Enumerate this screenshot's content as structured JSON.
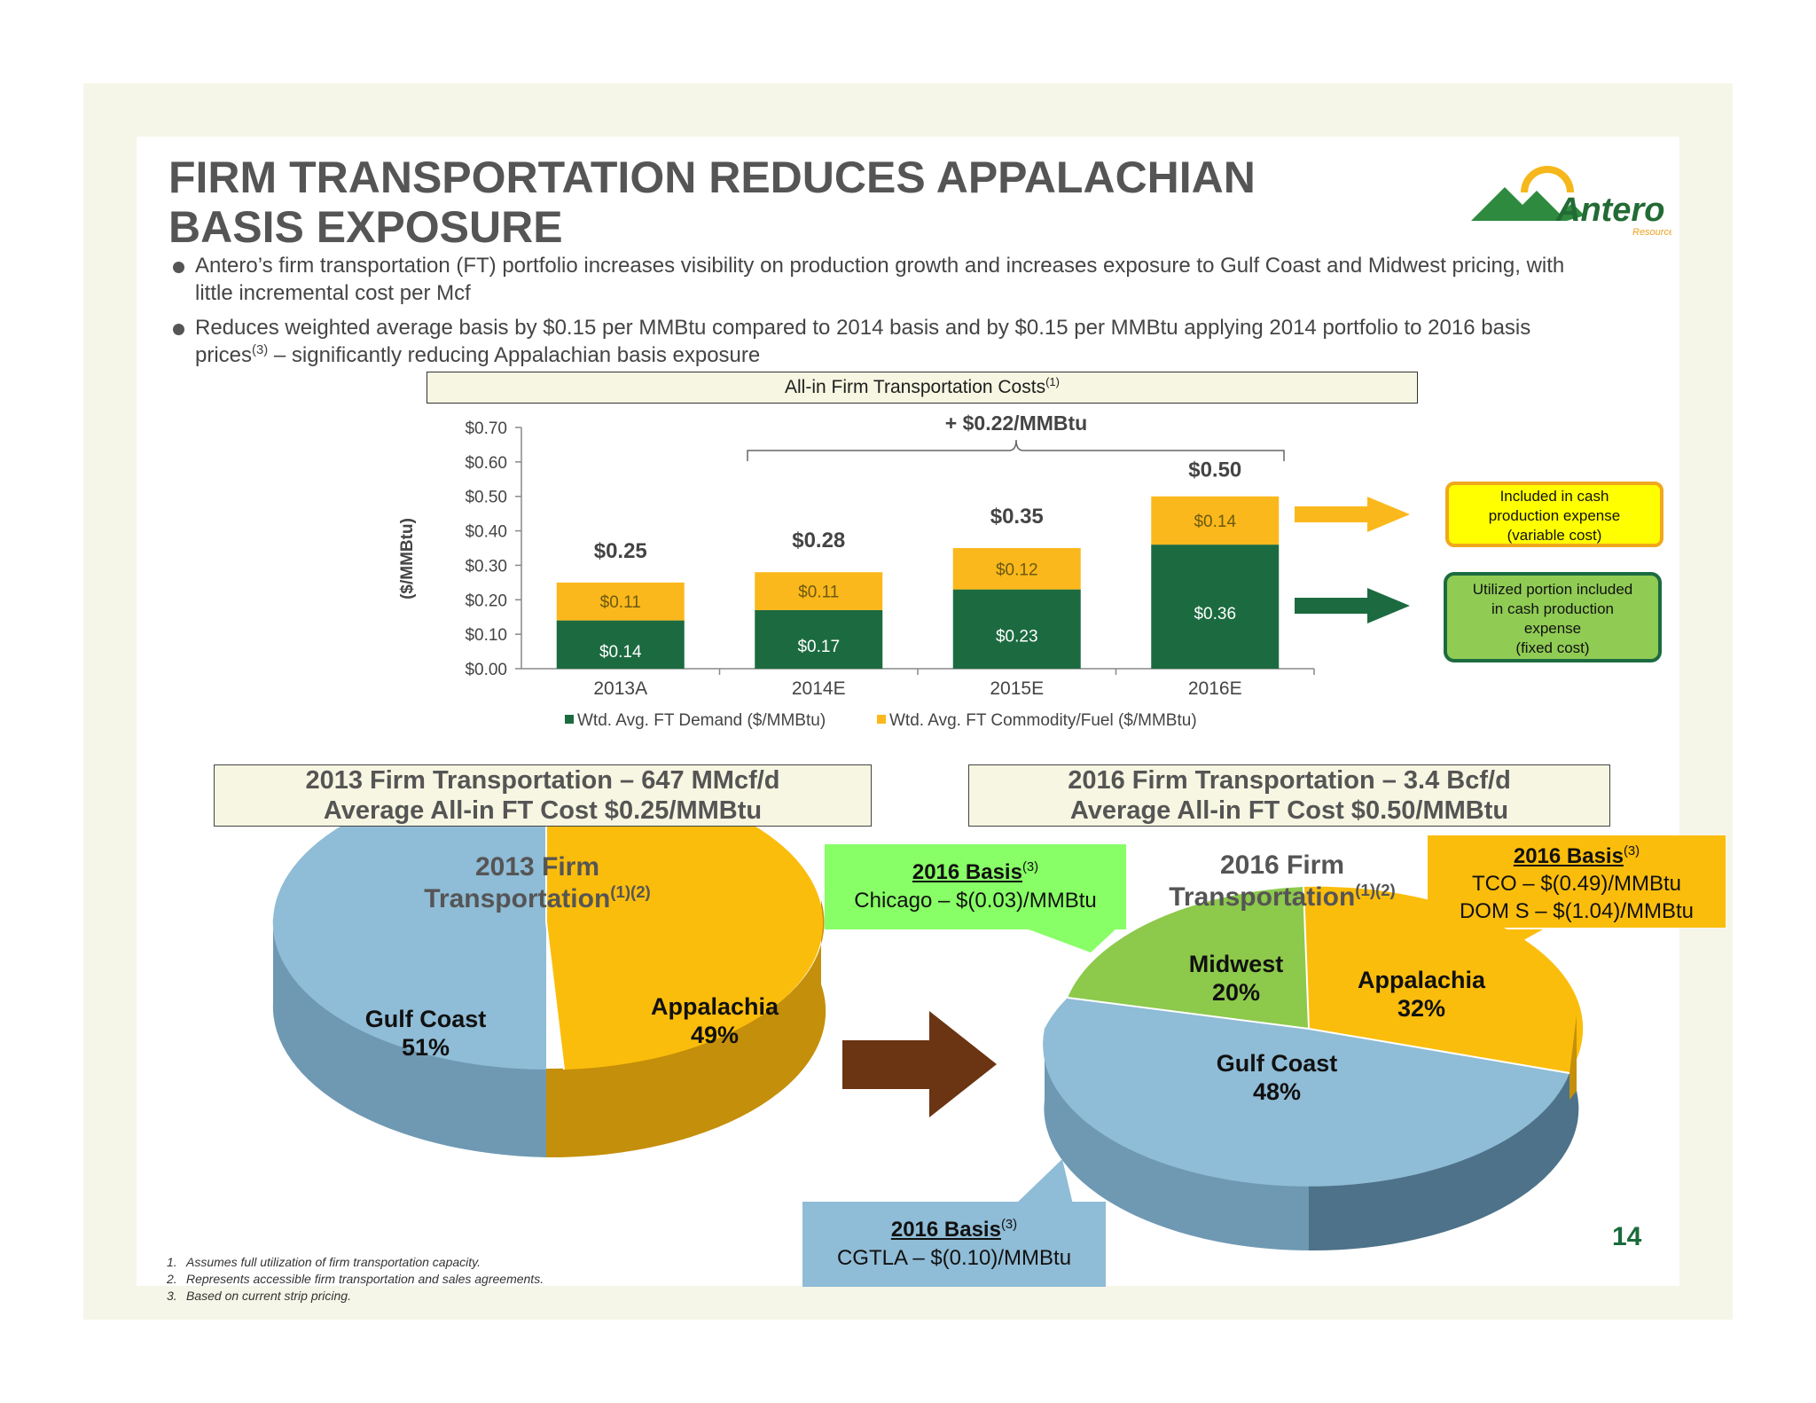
{
  "title": {
    "line1": "FIRM TRANSPORTATION REDUCES APPALACHIAN",
    "line2": "BASIS EXPOSURE"
  },
  "logo": {
    "text": "Antero",
    "subtext": "Resources",
    "icon": "mountain-sun-logo"
  },
  "bullets": [
    {
      "text": "Antero’s firm transportation (FT) portfolio increases visibility on production growth and  increases exposure to Gulf Coast and Midwest pricing, with little incremental cost per Mcf"
    },
    {
      "text_before": "Reduces weighted average basis by $0.15 per MMBtu compared to 2014 basis and by $0.15 per MMBtu applying 2014 portfolio to 2016 basis prices",
      "sup": "(3)",
      "text_after": " – significantly reducing Appalachian basis exposure"
    }
  ],
  "cost_header": {
    "text": "All-in Firm Transportation Costs",
    "sup": "(1)"
  },
  "chart_data": [
    {
      "type": "bar",
      "stacked": true,
      "title": "All-in Firm Transportation Costs(1)",
      "categories": [
        "2013A",
        "2014E",
        "2015E",
        "2016E"
      ],
      "series": [
        {
          "name": "Wtd. Avg. FT Demand ($/MMBtu)",
          "values": [
            0.14,
            0.17,
            0.23,
            0.36
          ],
          "color": "#1c6b40",
          "labels": [
            "$0.14",
            "$0.17",
            "$0.23",
            "$0.36"
          ]
        },
        {
          "name": "Wtd. Avg. FT Commodity/Fuel ($/MMBtu)",
          "values": [
            0.11,
            0.11,
            0.12,
            0.14
          ],
          "color": "#fbb81c",
          "labels": [
            "$0.11",
            "$0.11",
            "$0.12",
            "$0.14"
          ]
        }
      ],
      "totals": [
        "$0.25",
        "$0.28",
        "$0.35",
        "$0.50"
      ],
      "ylabel": "($/MMBtu)",
      "xlabel": "",
      "ylim": [
        0,
        0.7
      ],
      "yticks": [
        "$0.00",
        "$0.10",
        "$0.20",
        "$0.30",
        "$0.40",
        "$0.50",
        "$0.60",
        "$0.70"
      ],
      "grid": false,
      "legend_position": "bottom",
      "annotations": {
        "increase": "+ $0.22/MMBtu",
        "variable_cost": [
          "Included in cash",
          "production expense",
          "(variable cost)"
        ],
        "fixed_cost": [
          "Utilized portion included",
          "in cash production",
          "expense",
          "(fixed cost)"
        ]
      }
    },
    {
      "type": "pie",
      "title": "2013 Firm Transportation(1)(2)",
      "categories": [
        "Gulf Coast",
        "Appalachia"
      ],
      "values": [
        51,
        49
      ],
      "labels": [
        "51%",
        "49%"
      ],
      "colors": [
        "#8fbcd6",
        "#fbbd0c"
      ]
    },
    {
      "type": "pie",
      "title": "2016 Firm Transportation(1)(2)",
      "categories": [
        "Midwest",
        "Appalachia",
        "Gulf Coast"
      ],
      "values": [
        20,
        32,
        48
      ],
      "labels": [
        "20%",
        "32%",
        "48%"
      ],
      "colors": [
        "#8dc94b",
        "#fbbd0c",
        "#8fbcd6"
      ]
    }
  ],
  "box_2013": {
    "line1": "2013 Firm Transportation – 647 MMcf/d",
    "line2": "Average All-in FT Cost $0.25/MMBtu"
  },
  "box_2016": {
    "line1": "2016 Firm Transportation – 3.4 Bcf/d",
    "line2": "Average All-in FT Cost $0.50/MMBtu"
  },
  "pie2013_title": {
    "line1": "2013 Firm",
    "line2": "Transportation",
    "sup": "(1)(2)"
  },
  "pie2016_title": {
    "line1": "2016 Firm",
    "line2": "Transportation",
    "sup": "(1)(2)"
  },
  "callouts": {
    "chicago": {
      "head": "2016 Basis",
      "sup": "(3)",
      "line": "Chicago – $(0.03)/MMBtu"
    },
    "appalachia": {
      "head": "2016 Basis",
      "sup": "(3)",
      "line1": "TCO – $(0.49)/MMBtu",
      "line2": "DOM S – $(1.04)/MMBtu"
    },
    "gulf": {
      "head": "2016 Basis",
      "sup": "(3)",
      "line": "CGTLA – $(0.10)/MMBtu"
    }
  },
  "page_number": "14",
  "footnotes": [
    {
      "n": "1.",
      "text": "Assumes full utilization of firm transportation capacity."
    },
    {
      "n": "2.",
      "text": "Represents accessible firm transportation and sales agreements."
    },
    {
      "n": "3.",
      "text": "Based on current strip pricing."
    }
  ],
  "colors": {
    "demand": "#1c6b40",
    "commodity": "#fbb81c",
    "gulf": "#8fbcd6",
    "appalachia": "#fbbd0c",
    "midwest": "#8dc94b",
    "arrow": "#6b3412"
  }
}
